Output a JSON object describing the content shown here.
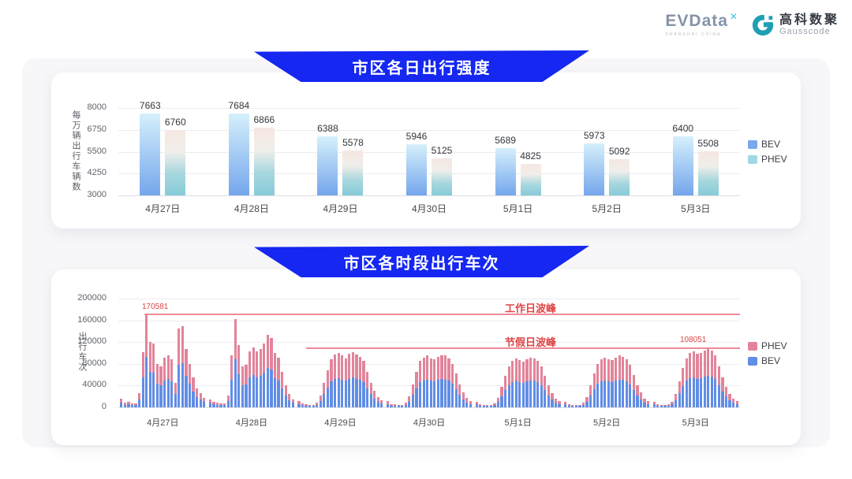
{
  "logo": {
    "evdata": "EVData",
    "evdata_mark": "✕",
    "evdata_sub": "SHANGHAI CHINA",
    "gauss_cn": "高科数聚",
    "gauss_en": "Gausscode"
  },
  "colors": {
    "ribbon_blue": "#1527f0",
    "bev_gradient": [
      "#d6f0fb",
      "#a5cbf4",
      "#74a6ec"
    ],
    "phev_gradient": [
      "#f6e7e2",
      "#f0eeea",
      "#a7d7de",
      "#86cbd8"
    ],
    "bev_legend": "#79a9ee",
    "phev_legend": "#a0d8e3",
    "stack_bev": "#608de6",
    "stack_phev": "#e2849a",
    "annotation_red": "#e04444",
    "peak_line_red": "#ef8a97"
  },
  "chart_data": [
    {
      "type": "bar",
      "title": "市区各日出行强度",
      "ylabel": "每万辆出行车辆数",
      "categories": [
        "4月27日",
        "4月28日",
        "4月29日",
        "4月30日",
        "5月1日",
        "5月2日",
        "5月3日"
      ],
      "series": [
        {
          "name": "BEV",
          "values": [
            7663,
            7684,
            6388,
            5946,
            5689,
            5973,
            6400
          ]
        },
        {
          "name": "PHEV",
          "values": [
            6760,
            6866,
            5578,
            5125,
            4825,
            5092,
            5508
          ]
        }
      ],
      "ylim": [
        3000,
        8000
      ],
      "yticks": [
        3000,
        4250,
        5500,
        6750,
        8000
      ],
      "grid": true,
      "legend_position": "right"
    },
    {
      "type": "bar",
      "stacked": true,
      "title": "市区各时段出行车次",
      "ylabel": "出行车次",
      "categories": [
        "4月27日",
        "4月28日",
        "4月29日",
        "4月30日",
        "5月1日",
        "5月2日",
        "5月3日"
      ],
      "ylim": [
        0,
        200000
      ],
      "yticks": [
        0,
        40000,
        80000,
        120000,
        160000,
        200000
      ],
      "hours_per_day": 24,
      "legend": [
        "PHEV",
        "BEV"
      ],
      "bev_share_estimate": 0.54,
      "hourly_totals_by_day": [
        [
          16000,
          9000,
          10500,
          8000,
          7500,
          26000,
          101000,
          170581,
          121000,
          118000,
          80000,
          76000,
          92000,
          96000,
          89000,
          45000,
          145000,
          150000,
          108000,
          80000,
          55000,
          35000,
          26000,
          18000
        ],
        [
          15000,
          10000,
          9000,
          8000,
          8000,
          22000,
          95000,
          163000,
          114000,
          75000,
          78000,
          103000,
          110000,
          103000,
          108000,
          118000,
          133000,
          128000,
          100000,
          92000,
          65000,
          40000,
          25000,
          15000
        ],
        [
          12000,
          7000,
          6000,
          5000,
          5000,
          9000,
          22000,
          45000,
          68000,
          88000,
          97000,
          100000,
          95000,
          90000,
          98000,
          102000,
          97000,
          93000,
          85000,
          65000,
          45000,
          30000,
          19000,
          13000
        ],
        [
          11000,
          6500,
          5500,
          5000,
          5000,
          8500,
          20000,
          42000,
          65000,
          85000,
          92000,
          95000,
          90000,
          88000,
          93000,
          96000,
          95000,
          90000,
          80000,
          62000,
          42000,
          28000,
          17000,
          12000
        ],
        [
          10000,
          6000,
          5000,
          4500,
          5000,
          8000,
          18000,
          38000,
          58000,
          75000,
          85000,
          90000,
          87000,
          84000,
          88000,
          92000,
          90000,
          86000,
          76000,
          58000,
          40000,
          26000,
          16000,
          11000
        ],
        [
          10000,
          6000,
          5000,
          5000,
          5000,
          8500,
          19000,
          40000,
          62000,
          80000,
          88000,
          92000,
          89000,
          87000,
          91000,
          95000,
          93000,
          88000,
          78000,
          60000,
          41000,
          27000,
          16000,
          11000
        ],
        [
          10000,
          6000,
          5000,
          5000,
          6000,
          10000,
          24000,
          48000,
          72000,
          90000,
          100000,
          103000,
          98000,
          100000,
          104000,
          108051,
          104000,
          96000,
          75000,
          55000,
          38000,
          25000,
          16000,
          11000
        ]
      ],
      "annotations": [
        {
          "label": "工作日波峰",
          "value": 170581,
          "value_label": "170581"
        },
        {
          "label": "节假日波峰",
          "value": 108051,
          "value_label": "108051"
        }
      ],
      "grid": true,
      "legend_position": "right"
    }
  ]
}
